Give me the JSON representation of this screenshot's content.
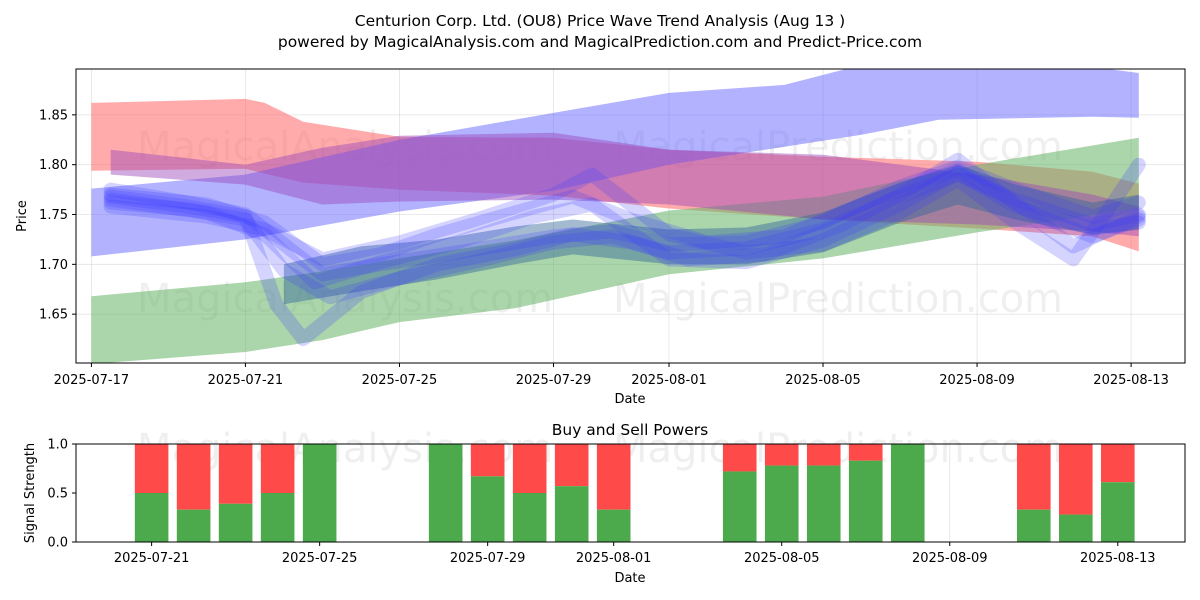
{
  "chart_data": [
    {
      "type": "area",
      "title": "Centurion Corp. Ltd. (OU8) Price Wave Trend Analysis (Aug 13 )",
      "subtitle": "powered by MagicalAnalysis.com and MagicalPrediction.com and Predict-Price.com",
      "xlabel": "Date",
      "ylabel": "Price",
      "x_ticks": [
        "2025-07-17",
        "2025-07-21",
        "2025-07-25",
        "2025-07-29",
        "2025-08-01",
        "2025-08-05",
        "2025-08-09",
        "2025-08-13"
      ],
      "x_tick_days": [
        0,
        4,
        8,
        12,
        15,
        19,
        23,
        27
      ],
      "xlim_days": [
        -0.4,
        28.4
      ],
      "y_ticks": [
        "1.65",
        "1.70",
        "1.75",
        "1.80",
        "1.85"
      ],
      "y_tick_values": [
        1.65,
        1.7,
        1.75,
        1.8,
        1.85
      ],
      "ylim": [
        1.601,
        1.896
      ],
      "grid": true,
      "bands": [
        {
          "name": "red-band",
          "color": "#ff6666",
          "opacity": 0.55,
          "x": [
            0,
            4,
            4.5,
            5.5,
            8,
            12,
            15,
            19,
            23,
            26,
            27.2
          ],
          "upper": [
            1.862,
            1.866,
            1.862,
            1.843,
            1.828,
            1.827,
            1.815,
            1.808,
            1.803,
            1.793,
            1.781
          ],
          "lower": [
            1.794,
            1.796,
            1.791,
            1.782,
            1.775,
            1.769,
            1.756,
            1.745,
            1.736,
            1.728,
            1.713
          ]
        },
        {
          "name": "blue-band",
          "color": "#6666ff",
          "opacity": 0.5,
          "x": [
            0,
            4,
            8,
            12,
            15,
            18,
            20,
            22,
            26,
            27.2
          ],
          "upper": [
            1.776,
            1.79,
            1.825,
            1.852,
            1.872,
            1.88,
            1.9,
            1.9,
            1.898,
            1.892
          ],
          "lower": [
            1.708,
            1.725,
            1.753,
            1.774,
            1.8,
            1.818,
            1.83,
            1.845,
            1.848,
            1.847
          ]
        },
        {
          "name": "green-band",
          "color": "#66b366",
          "opacity": 0.55,
          "x": [
            0,
            4,
            6,
            8,
            11,
            15,
            19,
            23,
            27.2
          ],
          "upper": [
            1.668,
            1.682,
            1.693,
            1.706,
            1.724,
            1.754,
            1.768,
            1.8,
            1.827
          ],
          "lower": [
            1.6,
            1.612,
            1.624,
            1.642,
            1.656,
            1.69,
            1.706,
            1.732,
            1.756
          ]
        },
        {
          "name": "purple-band",
          "color": "#9944bb",
          "opacity": 0.45,
          "x": [
            0.5,
            4,
            6,
            8,
            12,
            15,
            19,
            23,
            26,
            27.2
          ],
          "upper": [
            1.815,
            1.8,
            1.817,
            1.829,
            1.832,
            1.815,
            1.81,
            1.79,
            1.77,
            1.758
          ],
          "lower": [
            1.79,
            1.78,
            1.76,
            1.763,
            1.765,
            1.76,
            1.745,
            1.74,
            1.733,
            1.728
          ]
        },
        {
          "name": "teal-band",
          "color": "#336699",
          "opacity": 0.45,
          "x": [
            5,
            7,
            9,
            11,
            12.5,
            15,
            17,
            19,
            21,
            22.5,
            24,
            26,
            27.2
          ],
          "upper": [
            1.7,
            1.718,
            1.725,
            1.738,
            1.745,
            1.735,
            1.737,
            1.752,
            1.782,
            1.8,
            1.78,
            1.762,
            1.77
          ],
          "lower": [
            1.66,
            1.673,
            1.685,
            1.7,
            1.71,
            1.7,
            1.7,
            1.712,
            1.742,
            1.76,
            1.745,
            1.73,
            1.735
          ]
        }
      ],
      "wave_lines": [
        {
          "x": [
            0.5,
            2.5,
            4,
            5,
            6.2,
            8,
            10,
            12,
            13.5,
            15,
            17,
            19,
            21,
            22.5,
            24,
            26,
            27.2
          ],
          "y": [
            1.762,
            1.755,
            1.745,
            1.694,
            1.667,
            1.686,
            1.703,
            1.722,
            1.728,
            1.712,
            1.716,
            1.735,
            1.768,
            1.79,
            1.765,
            1.74,
            1.75
          ]
        },
        {
          "x": [
            0.5,
            2.5,
            4,
            5,
            6,
            7.5,
            9.5,
            12,
            13.5,
            15,
            17,
            19,
            21,
            22.5,
            24,
            26,
            27.2
          ],
          "y": [
            1.775,
            1.762,
            1.75,
            1.72,
            1.69,
            1.7,
            1.712,
            1.728,
            1.733,
            1.72,
            1.722,
            1.742,
            1.778,
            1.798,
            1.775,
            1.748,
            1.762
          ]
        },
        {
          "x": [
            0.5,
            2.5,
            4,
            4.8,
            5.5,
            7,
            9,
            11,
            12.5,
            14,
            15.5,
            17.5,
            19.5,
            21,
            22.5,
            24,
            25.5,
            27.2
          ],
          "y": [
            1.768,
            1.758,
            1.748,
            1.66,
            1.625,
            1.672,
            1.7,
            1.715,
            1.73,
            1.722,
            1.705,
            1.71,
            1.74,
            1.77,
            1.805,
            1.76,
            1.718,
            1.748
          ]
        },
        {
          "x": [
            0.5,
            3,
            4.5,
            6,
            7.5,
            9,
            11,
            12.5,
            14,
            16,
            18,
            20,
            22.5,
            24.5,
            26,
            27.2
          ],
          "y": [
            1.77,
            1.76,
            1.742,
            1.7,
            1.71,
            1.73,
            1.752,
            1.768,
            1.745,
            1.722,
            1.728,
            1.76,
            1.795,
            1.75,
            1.728,
            1.745
          ]
        },
        {
          "x": [
            0.5,
            3,
            4.5,
            6,
            8,
            10,
            12,
            13,
            15,
            17,
            19,
            21,
            22.5,
            24,
            25.5,
            26.5,
            27.2
          ],
          "y": [
            1.758,
            1.748,
            1.735,
            1.705,
            1.722,
            1.745,
            1.77,
            1.79,
            1.73,
            1.712,
            1.72,
            1.752,
            1.785,
            1.742,
            1.705,
            1.76,
            1.8
          ]
        },
        {
          "x": [
            0.5,
            3,
            4.5,
            5.8,
            7.5,
            9.5,
            11.5,
            13,
            15,
            17,
            19,
            21,
            22.5,
            24,
            26,
            27.2
          ],
          "y": [
            1.765,
            1.752,
            1.73,
            1.682,
            1.702,
            1.722,
            1.748,
            1.76,
            1.705,
            1.702,
            1.724,
            1.76,
            1.792,
            1.758,
            1.736,
            1.742
          ]
        }
      ]
    },
    {
      "type": "bar",
      "title": "Buy and Sell Powers",
      "xlabel": "Date",
      "ylabel": "Signal Strength",
      "x_ticks": [
        "2025-07-21",
        "2025-07-25",
        "2025-07-29",
        "2025-08-01",
        "2025-08-05",
        "2025-08-09",
        "2025-08-13"
      ],
      "x_tick_days": [
        4,
        8,
        12,
        15,
        19,
        23,
        27
      ],
      "xlim_days": [
        2.2,
        28.6
      ],
      "y_ticks": [
        "0.0",
        "0.5",
        "1.0"
      ],
      "y_tick_values": [
        0,
        0.5,
        1.0
      ],
      "ylim": [
        0,
        1
      ],
      "series": [
        {
          "name": "Buy",
          "color": "#4caa4c"
        },
        {
          "name": "Sell",
          "color": "#ff4a4a"
        }
      ],
      "bar_days": [
        4,
        5,
        6,
        7,
        8,
        11,
        12,
        13,
        14,
        15,
        18,
        19,
        20,
        21,
        22,
        25,
        26,
        27
      ],
      "buy": [
        0.5,
        0.33,
        0.39,
        0.5,
        1.0,
        1.0,
        0.67,
        0.5,
        0.57,
        0.33,
        0.72,
        0.78,
        0.78,
        0.83,
        1.0,
        0.33,
        0.28,
        0.61
      ]
    }
  ],
  "watermarks": {
    "left": "MagicalAnalysis.com",
    "right": "MagicalPrediction.com"
  }
}
